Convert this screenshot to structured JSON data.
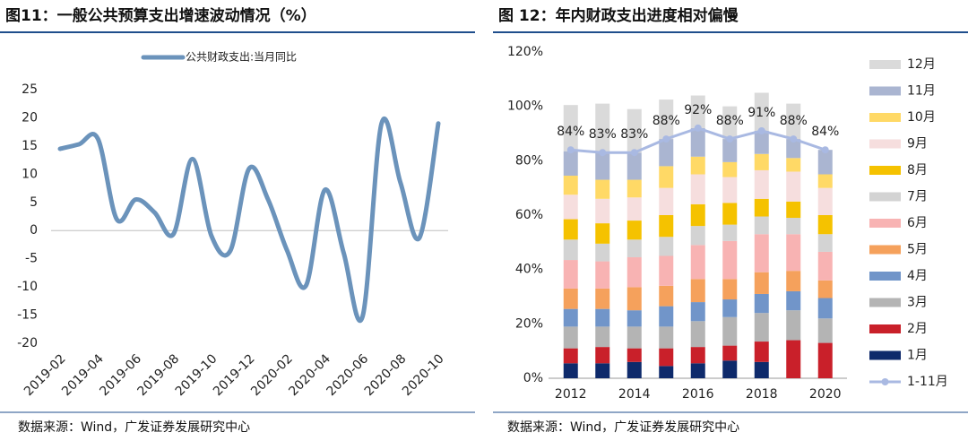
{
  "chart_data": [
    {
      "type": "line",
      "title": "图11：一般公共预算支出增速波动情况（%）",
      "source": "数据来源：Wind，广发证券发展研究中心",
      "categories": [
        "2019-02",
        null,
        "2019-04",
        null,
        "2019-06",
        null,
        "2019-08",
        null,
        "2019-10",
        null,
        "2019-12",
        null,
        "2020-02",
        null,
        "2020-04",
        null,
        "2020-06",
        null,
        "2020-08",
        null,
        "2020-10"
      ],
      "series": [
        {
          "name": "公共财政支出:当月同比",
          "color": "#6b93bb",
          "values": [
            14.5,
            15.3,
            16.3,
            2.0,
            5.5,
            3.2,
            -0.6,
            12.7,
            -0.9,
            -3.6,
            11.0,
            5.5,
            -3.5,
            -9.8,
            7.2,
            -4.0,
            -15.2,
            19.0,
            8.5,
            -1.3,
            19.0
          ]
        }
      ],
      "ylim": [
        -20,
        25
      ],
      "yticks": [
        -20,
        -15,
        -10,
        -5,
        0,
        5,
        10,
        15,
        20,
        25
      ],
      "grid": false,
      "legend": "top"
    },
    {
      "type": "bar",
      "stacked": true,
      "title": "图 12：年内财政支出进度相对偏慢",
      "source": "数据来源：Wind，广发证券发展研究中心",
      "categories": [
        "2012",
        null,
        "2014",
        null,
        "2016",
        null,
        "2018",
        null,
        "2020"
      ],
      "series": [
        {
          "name": "1月",
          "color": "#0e2a6b",
          "values": [
            5.5,
            5.5,
            6,
            4.5,
            5.5,
            6.5,
            6,
            null,
            null
          ]
        },
        {
          "name": "2月",
          "color": "#c9202a",
          "values": [
            5.5,
            6,
            5,
            6.5,
            6,
            5.5,
            7.5,
            14,
            13
          ]
        },
        {
          "name": "3月",
          "color": "#b4b4b4",
          "values": [
            8,
            7.5,
            8,
            8,
            9.5,
            10.5,
            10.5,
            11,
            9
          ]
        },
        {
          "name": "4月",
          "color": "#7195c9",
          "values": [
            6.5,
            6.5,
            6,
            7.5,
            7,
            6.5,
            7,
            7,
            7.5
          ]
        },
        {
          "name": "5月",
          "color": "#f5a15c",
          "values": [
            7.5,
            7.5,
            8.5,
            7.5,
            8.5,
            7.5,
            8,
            7.5,
            6.5
          ]
        },
        {
          "name": "6月",
          "color": "#f8b3b3",
          "values": [
            10.5,
            10,
            11,
            11,
            12.5,
            14,
            14,
            13.5,
            10.5
          ]
        },
        {
          "name": "7月",
          "color": "#d3d3d3",
          "values": [
            7.5,
            6.5,
            6.5,
            7,
            7,
            6,
            6.5,
            6,
            6.5
          ]
        },
        {
          "name": "8月",
          "color": "#f5c200",
          "values": [
            7.5,
            7.5,
            7,
            8,
            8,
            8,
            6.5,
            6,
            7
          ]
        },
        {
          "name": "9月",
          "color": "#f6dede",
          "values": [
            9,
            9,
            8.5,
            10,
            11,
            9.5,
            10.5,
            11,
            10
          ]
        },
        {
          "name": "10月",
          "color": "#ffd966",
          "values": [
            7,
            7,
            6.5,
            8,
            6.5,
            5.5,
            6,
            5,
            5
          ]
        },
        {
          "name": "11月",
          "color": "#aab5d1",
          "values": [
            9,
            10,
            10,
            10,
            10.5,
            8.5,
            8.5,
            7,
            9
          ]
        },
        {
          "name": "12月",
          "color": "#dadada",
          "values": [
            17,
            18,
            16,
            14.5,
            12,
            12,
            14,
            13,
            null
          ]
        },
        {
          "name": "1-11月",
          "color": "#a9b9e2",
          "type": "line",
          "values": [
            84,
            83,
            83,
            88,
            92,
            88,
            91,
            88,
            84
          ],
          "value_labels": [
            "84%",
            "83%",
            "83%",
            "88%",
            "92%",
            "88%",
            "91%",
            "88%",
            "84%"
          ]
        }
      ],
      "ylim": [
        0,
        120
      ],
      "yticks": [
        {
          "value": 0,
          "label": "0%"
        },
        {
          "value": 20,
          "label": "20%"
        },
        {
          "value": 40,
          "label": "40%"
        },
        {
          "value": 60,
          "label": "60%"
        },
        {
          "value": 80,
          "label": "80%"
        },
        {
          "value": 100,
          "label": "100%"
        },
        {
          "value": 120,
          "label": "120%"
        }
      ],
      "grid": false,
      "legend": "right"
    }
  ]
}
